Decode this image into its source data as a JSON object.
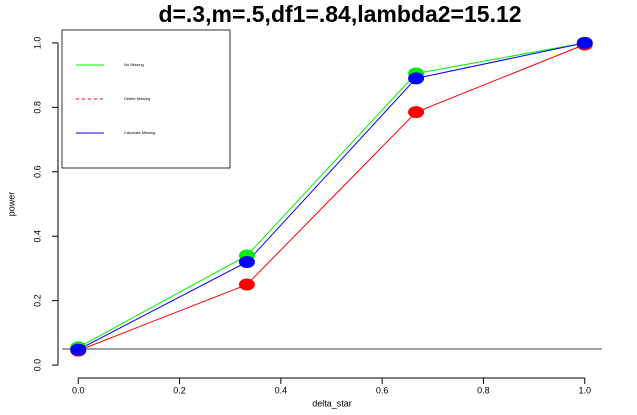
{
  "chart_data": {
    "type": "line",
    "title": "d=.3,m=.5,df1=.84,lambda2=15.12",
    "x_label": "delta_star",
    "y_label": "power",
    "x": [
      0,
      0.333,
      0.667,
      1
    ],
    "series": [
      {
        "name": "No Missing",
        "color": "#00ee00",
        "dash": false,
        "values": [
          0.055,
          0.34,
          0.905,
          1.0
        ]
      },
      {
        "name": "Delete Missing",
        "color": "#ff0000",
        "dash": true,
        "values": [
          0.045,
          0.25,
          0.785,
          0.995
        ]
      },
      {
        "name": "Calculate Missing",
        "color": "#0000ff",
        "dash": false,
        "values": [
          0.048,
          0.32,
          0.89,
          1.0
        ]
      }
    ],
    "reference_line": 0.05,
    "xlim": [
      -0.04,
      1.04
    ],
    "ylim": [
      -0.04,
      1.04
    ],
    "xticks": [
      {
        "value": 0,
        "label": "0.0"
      },
      0.2,
      0.4,
      0.6,
      0.8,
      {
        "value": 1,
        "label": "1.0"
      }
    ],
    "yticks": [
      {
        "value": 0,
        "label": "0.0"
      },
      0.2,
      0.4,
      0.6,
      0.8,
      {
        "value": 1,
        "label": "1.0"
      }
    ],
    "legend": "top-left"
  }
}
